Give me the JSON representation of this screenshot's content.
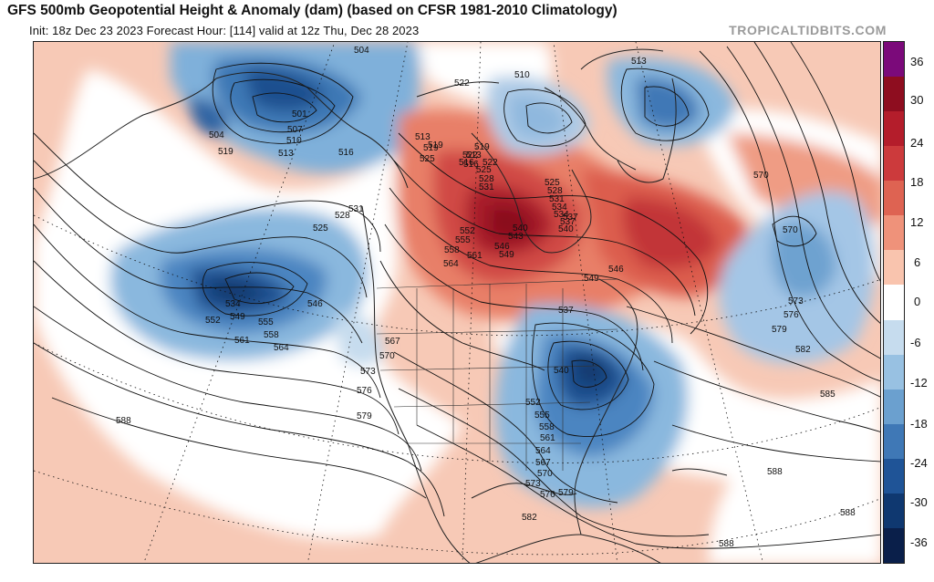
{
  "header": {
    "title": "GFS 500mb Geopotential Height & Anomaly (dam) (based on CFSR 1981-2010 Climatology)",
    "subtitle": "Init: 18z Dec 23 2023    Forecast Hour: [114]    valid at 12z Thu, Dec 28 2023",
    "watermark": "TROPICALTIDBITS.COM"
  },
  "colorbar": {
    "labels": [
      "36",
      "30",
      "24",
      "18",
      "12",
      "6",
      "0",
      "-6",
      "-12",
      "-18",
      "-24",
      "-30",
      "-36"
    ],
    "colors": [
      "#7b0a7a",
      "#8e0d1f",
      "#b41d2b",
      "#cc3a3c",
      "#de6352",
      "#ef927a",
      "#f9c4ae",
      "#ffffff",
      "#c6dcee",
      "#98c1e2",
      "#6ba0cf",
      "#3f78b6",
      "#1f5497",
      "#0f3870",
      "#0a1f4a"
    ]
  },
  "map": {
    "contour_labels": [
      {
        "text": "504"
      },
      {
        "text": "501"
      },
      {
        "text": "507"
      },
      {
        "text": "510"
      },
      {
        "text": "513"
      },
      {
        "text": "516"
      },
      {
        "text": "519"
      },
      {
        "text": "504"
      },
      {
        "text": "513"
      },
      {
        "text": "519"
      },
      {
        "text": "525"
      },
      {
        "text": "528"
      },
      {
        "text": "525"
      },
      {
        "text": "531"
      },
      {
        "text": "534"
      },
      {
        "text": "546"
      },
      {
        "text": "552"
      },
      {
        "text": "549"
      },
      {
        "text": "555"
      },
      {
        "text": "558"
      },
      {
        "text": "561"
      },
      {
        "text": "564"
      },
      {
        "text": "567"
      },
      {
        "text": "570"
      },
      {
        "text": "573"
      },
      {
        "text": "576"
      },
      {
        "text": "579"
      },
      {
        "text": "588"
      },
      {
        "text": "510"
      },
      {
        "text": "522"
      },
      {
        "text": "519"
      },
      {
        "text": "516"
      },
      {
        "text": "522"
      },
      {
        "text": "525"
      },
      {
        "text": "528"
      },
      {
        "text": "531"
      },
      {
        "text": "534"
      },
      {
        "text": "537"
      },
      {
        "text": "540"
      },
      {
        "text": "543"
      },
      {
        "text": "546"
      },
      {
        "text": "549"
      },
      {
        "text": "552"
      },
      {
        "text": "555"
      },
      {
        "text": "558"
      },
      {
        "text": "561"
      },
      {
        "text": "564"
      },
      {
        "text": "513"
      },
      {
        "text": "516"
      },
      {
        "text": "513"
      },
      {
        "text": "519"
      },
      {
        "text": "522"
      },
      {
        "text": "525"
      },
      {
        "text": "528"
      },
      {
        "text": "531"
      },
      {
        "text": "534"
      },
      {
        "text": "537"
      },
      {
        "text": "540"
      },
      {
        "text": "546"
      },
      {
        "text": "549"
      },
      {
        "text": "537"
      },
      {
        "text": "540"
      },
      {
        "text": "552"
      },
      {
        "text": "555"
      },
      {
        "text": "558"
      },
      {
        "text": "561"
      },
      {
        "text": "564"
      },
      {
        "text": "567"
      },
      {
        "text": "570"
      },
      {
        "text": "573"
      },
      {
        "text": "576"
      },
      {
        "text": "579"
      },
      {
        "text": "582"
      },
      {
        "text": "570"
      },
      {
        "text": "570"
      },
      {
        "text": "573"
      },
      {
        "text": "576"
      },
      {
        "text": "579"
      },
      {
        "text": "582"
      },
      {
        "text": "585"
      },
      {
        "text": "588"
      },
      {
        "text": "588"
      },
      {
        "text": "588"
      }
    ]
  }
}
